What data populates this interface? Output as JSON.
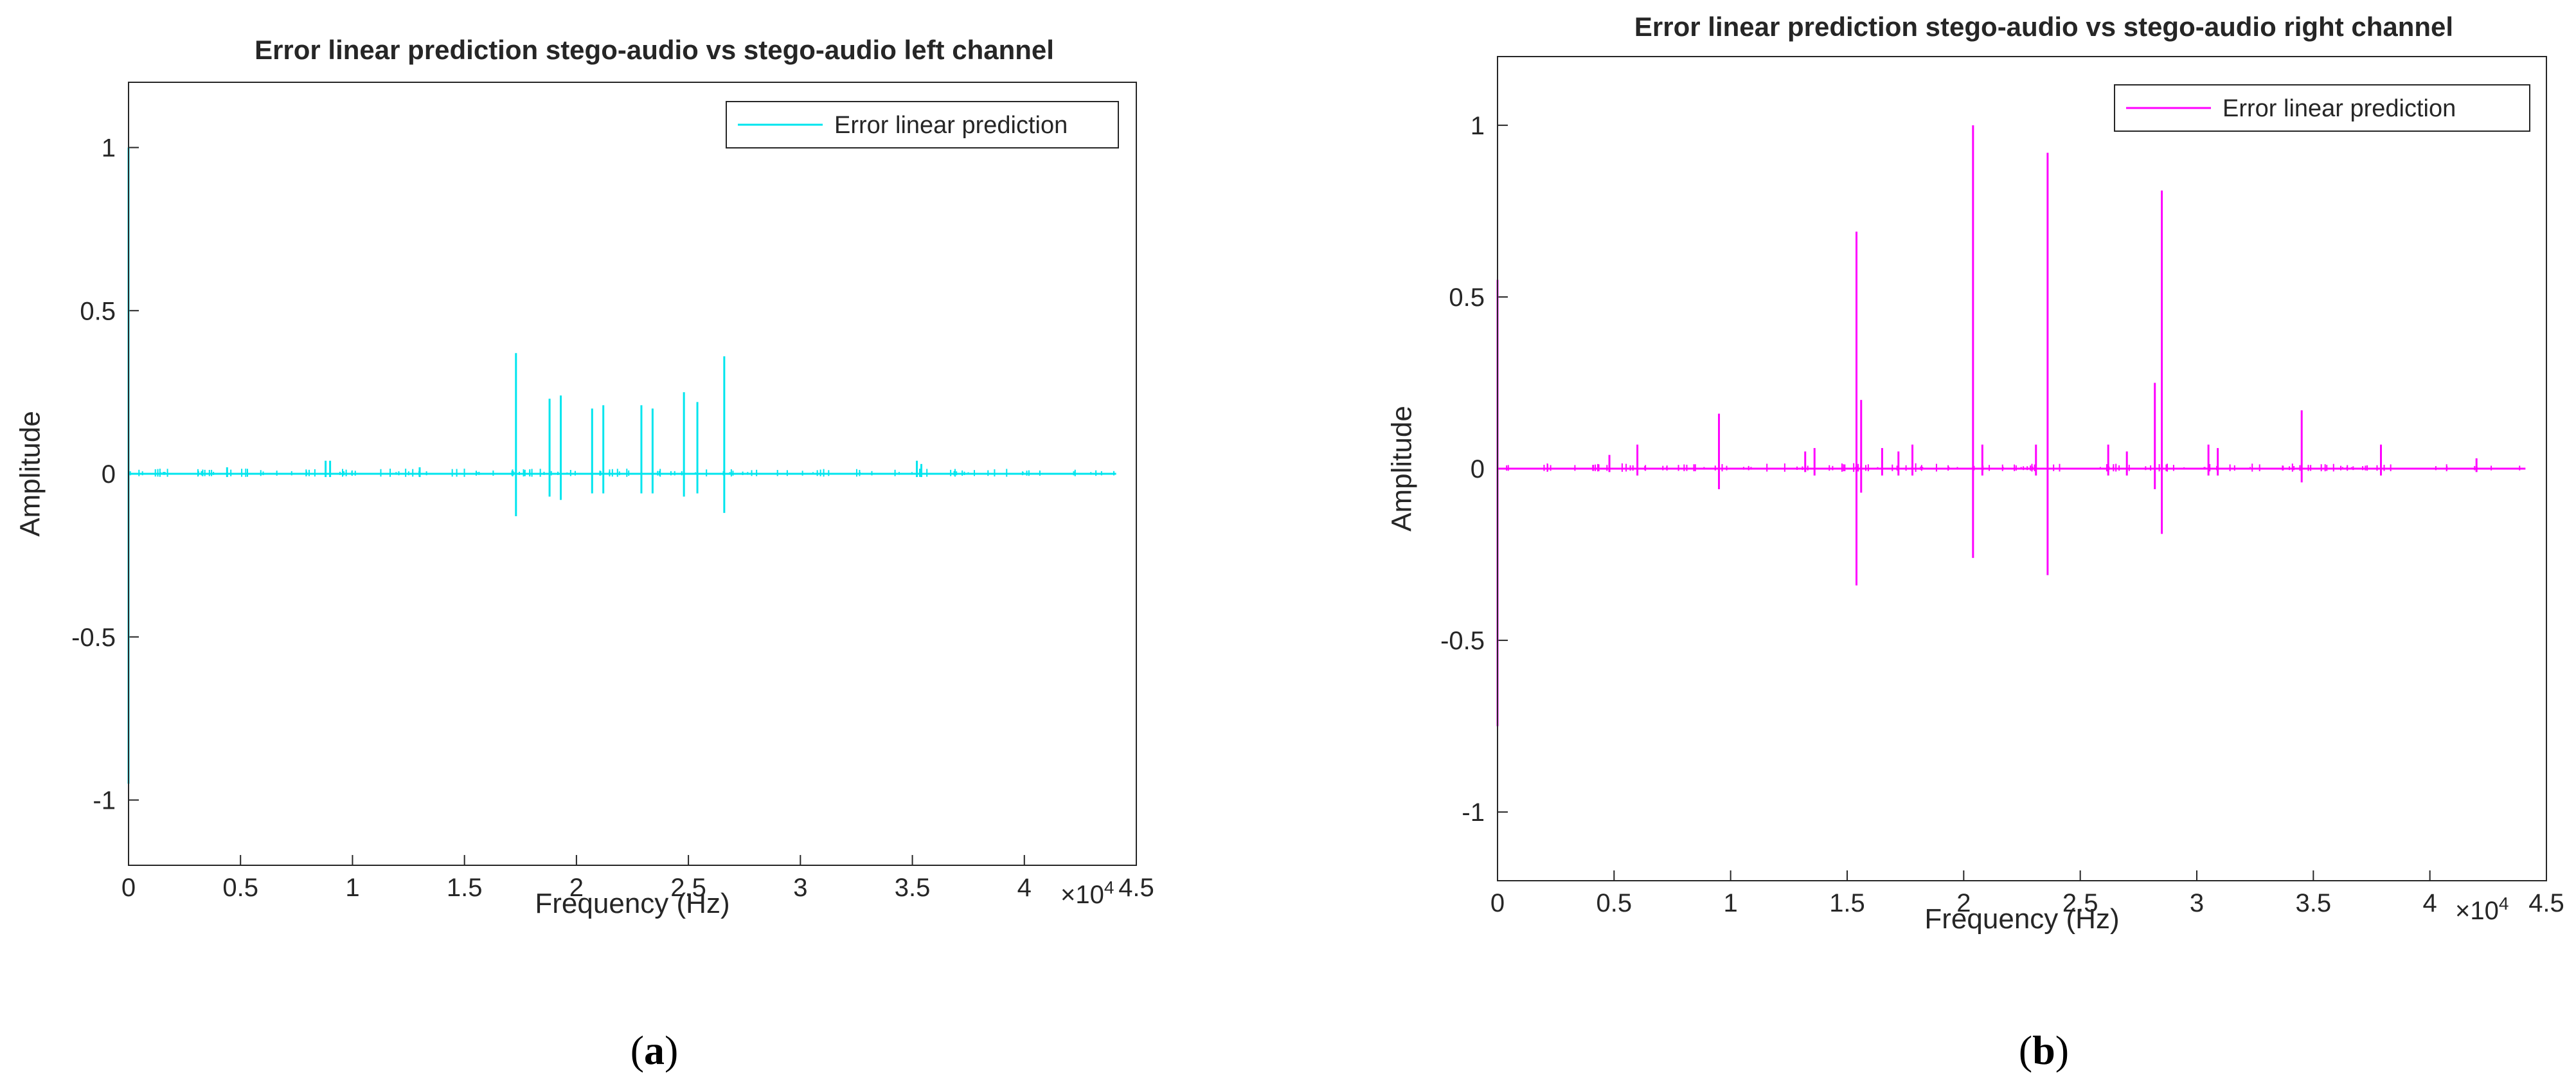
{
  "chart_data": [
    {
      "type": "line",
      "panel_label": "a",
      "title": "Error linear prediction stego-audio vs stego-audio left channel",
      "xlabel": "Frequency (Hz)",
      "ylabel": "Amplitude",
      "x_exponent_label": "×10",
      "x_exponent_power": "4",
      "xlim": [
        0,
        4.5
      ],
      "ylim": [
        -1.2,
        1.2
      ],
      "xticks": [
        0,
        0.5,
        1,
        1.5,
        2,
        2.5,
        3,
        3.5,
        4,
        4.5
      ],
      "xtick_labels": [
        "0",
        "0.5",
        "1",
        "1.5",
        "2",
        "2.5",
        "3",
        "3.5",
        "4",
        "4.5"
      ],
      "yticks": [
        1,
        0.5,
        0,
        -0.5,
        -1
      ],
      "ytick_labels": [
        "1",
        "0.5",
        "0",
        "-0.5",
        "-1"
      ],
      "grid": false,
      "legend_position": "top-right",
      "color": "#00e5ee",
      "series": [
        {
          "name": "Error linear prediction",
          "x_range": [
            0,
            4.41
          ],
          "spikes": [
            {
              "x": 0.0,
              "top": 1.0,
              "bottom": -0.95
            },
            {
              "x": 0.44,
              "top": 0.02,
              "bottom": -0.01
            },
            {
              "x": 0.88,
              "top": 0.04,
              "bottom": -0.01
            },
            {
              "x": 0.9,
              "top": 0.04,
              "bottom": -0.01
            },
            {
              "x": 1.3,
              "top": 0.02,
              "bottom": -0.01
            },
            {
              "x": 1.73,
              "top": 0.37,
              "bottom": -0.13
            },
            {
              "x": 1.88,
              "top": 0.23,
              "bottom": -0.07
            },
            {
              "x": 1.93,
              "top": 0.24,
              "bottom": -0.08
            },
            {
              "x": 2.07,
              "top": 0.2,
              "bottom": -0.06
            },
            {
              "x": 2.12,
              "top": 0.21,
              "bottom": -0.06
            },
            {
              "x": 2.29,
              "top": 0.21,
              "bottom": -0.06
            },
            {
              "x": 2.34,
              "top": 0.2,
              "bottom": -0.06
            },
            {
              "x": 2.48,
              "top": 0.25,
              "bottom": -0.07
            },
            {
              "x": 2.54,
              "top": 0.22,
              "bottom": -0.06
            },
            {
              "x": 2.66,
              "top": 0.36,
              "bottom": -0.12
            },
            {
              "x": 3.52,
              "top": 0.04,
              "bottom": -0.01
            },
            {
              "x": 3.54,
              "top": 0.03,
              "bottom": -0.01
            }
          ]
        }
      ]
    },
    {
      "type": "line",
      "panel_label": "b",
      "title": "Error linear prediction stego-audio vs stego-audio right channel",
      "xlabel": "Frequency (Hz)",
      "ylabel": "Amplitude",
      "x_exponent_label": "×10",
      "x_exponent_power": "4",
      "xlim": [
        0,
        4.5
      ],
      "ylim": [
        -1.2,
        1.2
      ],
      "xticks": [
        0,
        0.5,
        1,
        1.5,
        2,
        2.5,
        3,
        3.5,
        4,
        4.5
      ],
      "xtick_labels": [
        "0",
        "0.5",
        "1",
        "1.5",
        "2",
        "2.5",
        "3",
        "3.5",
        "4",
        "4.5"
      ],
      "yticks": [
        1,
        0.5,
        0,
        -0.5,
        -1
      ],
      "ytick_labels": [
        "1",
        "0.5",
        "0",
        "-0.5",
        "-1"
      ],
      "grid": false,
      "legend_position": "top-right",
      "color": "#ff00ff",
      "series": [
        {
          "name": "Error linear prediction",
          "x_range": [
            0,
            4.41
          ],
          "spikes": [
            {
              "x": 0.0,
              "top": 0.55,
              "bottom": -0.75
            },
            {
              "x": 0.48,
              "top": 0.04,
              "bottom": -0.01
            },
            {
              "x": 0.6,
              "top": 0.07,
              "bottom": -0.02
            },
            {
              "x": 0.95,
              "top": 0.16,
              "bottom": -0.06
            },
            {
              "x": 1.32,
              "top": 0.05,
              "bottom": -0.01
            },
            {
              "x": 1.36,
              "top": 0.06,
              "bottom": -0.02
            },
            {
              "x": 1.54,
              "top": 0.69,
              "bottom": -0.34
            },
            {
              "x": 1.56,
              "top": 0.2,
              "bottom": -0.07
            },
            {
              "x": 1.65,
              "top": 0.06,
              "bottom": -0.02
            },
            {
              "x": 1.72,
              "top": 0.05,
              "bottom": -0.02
            },
            {
              "x": 1.78,
              "top": 0.07,
              "bottom": -0.02
            },
            {
              "x": 2.04,
              "top": 1.0,
              "bottom": -0.26
            },
            {
              "x": 2.08,
              "top": 0.07,
              "bottom": -0.02
            },
            {
              "x": 2.31,
              "top": 0.07,
              "bottom": -0.02
            },
            {
              "x": 2.36,
              "top": 0.92,
              "bottom": -0.31
            },
            {
              "x": 2.62,
              "top": 0.07,
              "bottom": -0.02
            },
            {
              "x": 2.7,
              "top": 0.05,
              "bottom": -0.02
            },
            {
              "x": 2.82,
              "top": 0.25,
              "bottom": -0.06
            },
            {
              "x": 2.85,
              "top": 0.81,
              "bottom": -0.19
            },
            {
              "x": 3.05,
              "top": 0.07,
              "bottom": -0.02
            },
            {
              "x": 3.09,
              "top": 0.06,
              "bottom": -0.02
            },
            {
              "x": 3.45,
              "top": 0.17,
              "bottom": -0.04
            },
            {
              "x": 3.79,
              "top": 0.07,
              "bottom": -0.02
            },
            {
              "x": 4.2,
              "top": 0.03,
              "bottom": -0.01
            }
          ]
        }
      ]
    }
  ]
}
